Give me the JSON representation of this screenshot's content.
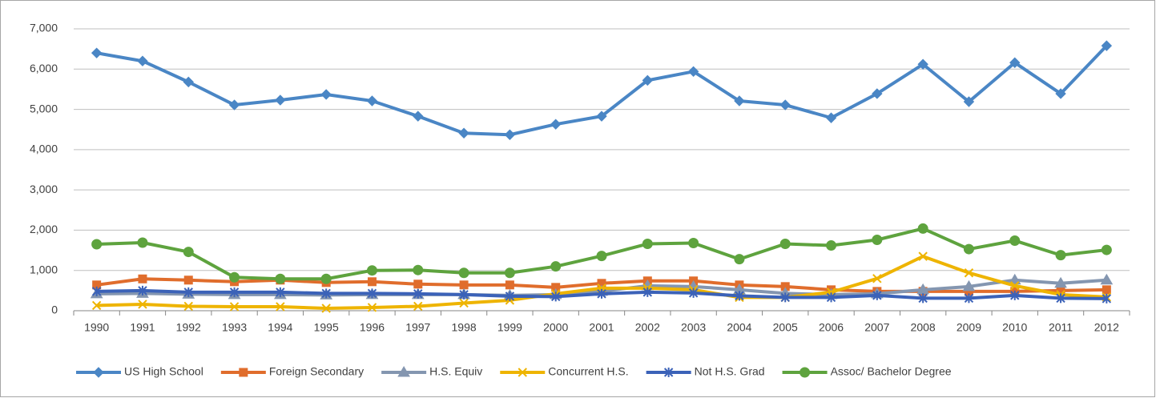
{
  "chart_data": {
    "type": "line",
    "categories": [
      "1990",
      "1991",
      "1992",
      "1993",
      "1994",
      "1995",
      "1996",
      "1997",
      "1998",
      "1999",
      "2000",
      "2001",
      "2002",
      "2003",
      "2004",
      "2005",
      "2006",
      "2007",
      "2008",
      "2009",
      "2010",
      "2011",
      "2012"
    ],
    "series": [
      {
        "name": "US High School",
        "color": "#4a86c5",
        "marker": "diamond",
        "values": [
          6400,
          6200,
          5680,
          5110,
          5230,
          5370,
          5210,
          4830,
          4410,
          4370,
          4630,
          4830,
          5720,
          5940,
          5210,
          5110,
          4790,
          5390,
          6120,
          5190,
          6160,
          5390,
          6580
        ]
      },
      {
        "name": "Foreign Secondary",
        "color": "#e06d2c",
        "marker": "square",
        "values": [
          640,
          790,
          760,
          720,
          760,
          700,
          720,
          660,
          640,
          640,
          580,
          680,
          740,
          740,
          640,
          600,
          520,
          480,
          480,
          480,
          480,
          500,
          520
        ]
      },
      {
        "name": "H.S. Equiv",
        "color": "#8496b0",
        "marker": "triangle",
        "values": [
          420,
          430,
          410,
          400,
          400,
          390,
          400,
          400,
          400,
          380,
          400,
          480,
          620,
          600,
          520,
          430,
          400,
          420,
          520,
          600,
          760,
          680,
          760
        ]
      },
      {
        "name": "Concurrent H.S.",
        "color": "#eeb400",
        "marker": "x",
        "values": [
          130,
          160,
          110,
          100,
          100,
          60,
          80,
          110,
          190,
          260,
          420,
          560,
          560,
          520,
          330,
          330,
          460,
          800,
          1350,
          940,
          620,
          400,
          340
        ]
      },
      {
        "name": "Not H.S. Grad",
        "color": "#3b62b8",
        "marker": "asterisk",
        "values": [
          480,
          500,
          460,
          460,
          460,
          430,
          430,
          420,
          400,
          360,
          350,
          420,
          460,
          440,
          370,
          330,
          330,
          380,
          310,
          310,
          380,
          310,
          300
        ]
      },
      {
        "name": "Assoc/ Bachelor Degree",
        "color": "#5ea33e",
        "marker": "circle",
        "values": [
          1650,
          1690,
          1460,
          830,
          790,
          790,
          1000,
          1010,
          940,
          940,
          1100,
          1360,
          1660,
          1680,
          1280,
          1660,
          1620,
          1760,
          2040,
          1530,
          1740,
          1380,
          1510
        ]
      }
    ],
    "ylim": [
      0,
      7000
    ],
    "yticks": [
      0,
      {
        "value": 1000,
        "label": "1,000"
      },
      {
        "value": 2000,
        "label": "2,000"
      },
      {
        "value": 3000,
        "label": "3,000"
      },
      {
        "value": 4000,
        "label": "4,000"
      },
      {
        "value": 5000,
        "label": "5,000"
      },
      {
        "value": 6000,
        "label": "6,000"
      },
      {
        "value": 7000,
        "label": "7,000"
      }
    ],
    "grid": true,
    "legend": "bottom"
  }
}
